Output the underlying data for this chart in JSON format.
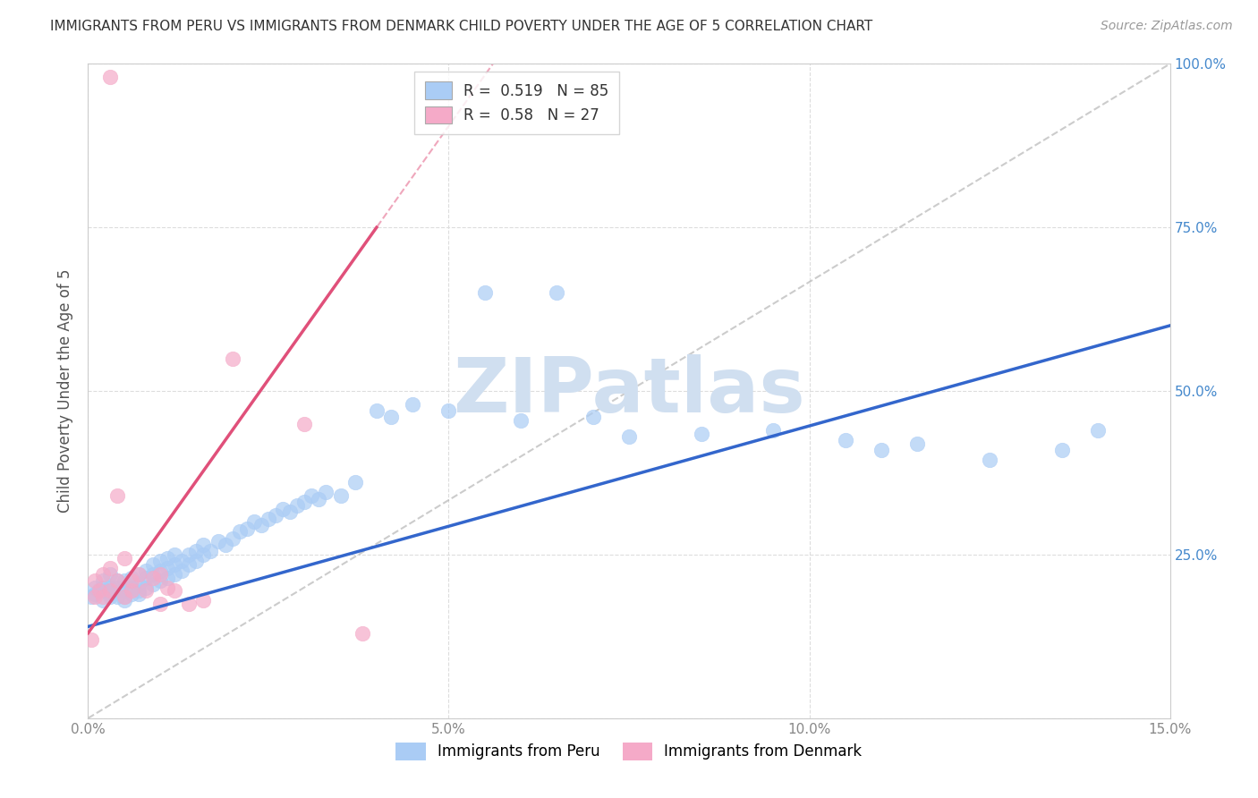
{
  "title": "IMMIGRANTS FROM PERU VS IMMIGRANTS FROM DENMARK CHILD POVERTY UNDER THE AGE OF 5 CORRELATION CHART",
  "source": "Source: ZipAtlas.com",
  "ylabel": "Child Poverty Under the Age of 5",
  "xlabel_peru": "Immigrants from Peru",
  "xlabel_denmark": "Immigrants from Denmark",
  "xlim": [
    0.0,
    0.15
  ],
  "ylim": [
    0.0,
    1.0
  ],
  "peru_color": "#aaccf5",
  "denmark_color": "#f5aac8",
  "peru_line_color": "#3366cc",
  "denmark_line_color": "#e0507a",
  "peru_R": 0.519,
  "peru_N": 85,
  "denmark_R": 0.58,
  "denmark_N": 27,
  "watermark": "ZIPatlas",
  "watermark_color": "#d0dff0",
  "background_color": "#ffffff",
  "grid_color": "#dddddd",
  "right_tick_color": "#4488cc",
  "peru_line_x0": 0.0,
  "peru_line_y0": 0.14,
  "peru_line_x1": 0.15,
  "peru_line_y1": 0.6,
  "denmark_line_x0": 0.0,
  "denmark_line_y0": 0.13,
  "denmark_line_x1": 0.04,
  "denmark_line_y1": 0.75,
  "diag_line_x0": 0.0,
  "diag_line_y0": 0.0,
  "diag_line_x1": 0.15,
  "diag_line_y1": 1.0,
  "peru_scatter_x": [
    0.0005,
    0.001,
    0.001,
    0.0015,
    0.002,
    0.002,
    0.002,
    0.0025,
    0.003,
    0.003,
    0.003,
    0.003,
    0.004,
    0.004,
    0.004,
    0.005,
    0.005,
    0.005,
    0.005,
    0.006,
    0.006,
    0.006,
    0.007,
    0.007,
    0.007,
    0.007,
    0.008,
    0.008,
    0.008,
    0.009,
    0.009,
    0.009,
    0.01,
    0.01,
    0.01,
    0.011,
    0.011,
    0.011,
    0.012,
    0.012,
    0.012,
    0.013,
    0.013,
    0.014,
    0.014,
    0.015,
    0.015,
    0.016,
    0.016,
    0.017,
    0.018,
    0.019,
    0.02,
    0.021,
    0.022,
    0.023,
    0.024,
    0.025,
    0.026,
    0.027,
    0.028,
    0.029,
    0.03,
    0.031,
    0.032,
    0.033,
    0.035,
    0.037,
    0.04,
    0.042,
    0.045,
    0.05,
    0.055,
    0.06,
    0.065,
    0.07,
    0.075,
    0.085,
    0.095,
    0.105,
    0.11,
    0.115,
    0.125,
    0.135,
    0.14
  ],
  "peru_scatter_y": [
    0.185,
    0.19,
    0.2,
    0.195,
    0.18,
    0.2,
    0.21,
    0.195,
    0.185,
    0.19,
    0.2,
    0.22,
    0.185,
    0.2,
    0.21,
    0.18,
    0.185,
    0.195,
    0.21,
    0.19,
    0.2,
    0.215,
    0.19,
    0.195,
    0.205,
    0.22,
    0.2,
    0.215,
    0.225,
    0.205,
    0.22,
    0.235,
    0.21,
    0.225,
    0.24,
    0.215,
    0.23,
    0.245,
    0.22,
    0.235,
    0.25,
    0.225,
    0.24,
    0.235,
    0.25,
    0.24,
    0.255,
    0.25,
    0.265,
    0.255,
    0.27,
    0.265,
    0.275,
    0.285,
    0.29,
    0.3,
    0.295,
    0.305,
    0.31,
    0.32,
    0.315,
    0.325,
    0.33,
    0.34,
    0.335,
    0.345,
    0.34,
    0.36,
    0.47,
    0.46,
    0.48,
    0.47,
    0.65,
    0.455,
    0.65,
    0.46,
    0.43,
    0.435,
    0.44,
    0.425,
    0.41,
    0.42,
    0.395,
    0.41,
    0.44
  ],
  "denmark_scatter_x": [
    0.0005,
    0.001,
    0.001,
    0.0015,
    0.002,
    0.002,
    0.003,
    0.003,
    0.003,
    0.004,
    0.004,
    0.005,
    0.005,
    0.006,
    0.006,
    0.007,
    0.008,
    0.009,
    0.01,
    0.01,
    0.011,
    0.012,
    0.014,
    0.016,
    0.02,
    0.03,
    0.038
  ],
  "denmark_scatter_y": [
    0.12,
    0.185,
    0.21,
    0.195,
    0.185,
    0.22,
    0.195,
    0.23,
    0.98,
    0.21,
    0.34,
    0.185,
    0.245,
    0.195,
    0.21,
    0.22,
    0.195,
    0.215,
    0.22,
    0.175,
    0.2,
    0.195,
    0.175,
    0.18,
    0.55,
    0.45,
    0.13
  ]
}
